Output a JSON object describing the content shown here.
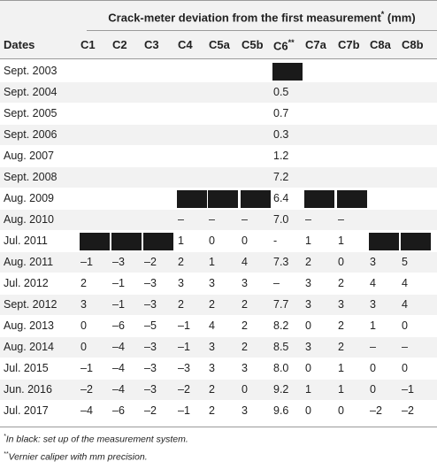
{
  "title": "Crack-meter deviation from the first measurement",
  "title_mark": "*",
  "title_unit": "(mm)",
  "columns": {
    "dates": "Dates",
    "list": [
      "C1",
      "C2",
      "C3",
      "C4",
      "C5a",
      "C5b",
      "C6",
      "C7a",
      "C7b",
      "C8a",
      "C8b"
    ],
    "c6_mark": "**"
  },
  "rows": [
    {
      "date": "Sept. 2003",
      "values": [
        "",
        "",
        "",
        "",
        "",
        "",
        "",
        "",
        "",
        "",
        ""
      ],
      "black": [
        false,
        false,
        false,
        false,
        false,
        false,
        true,
        false,
        false,
        false,
        false
      ]
    },
    {
      "date": "Sept. 2004",
      "values": [
        "",
        "",
        "",
        "",
        "",
        "",
        "0.5",
        "",
        "",
        "",
        ""
      ],
      "black": [
        false,
        false,
        false,
        false,
        false,
        false,
        false,
        false,
        false,
        false,
        false
      ]
    },
    {
      "date": "Sept. 2005",
      "values": [
        "",
        "",
        "",
        "",
        "",
        "",
        "0.7",
        "",
        "",
        "",
        ""
      ],
      "black": [
        false,
        false,
        false,
        false,
        false,
        false,
        false,
        false,
        false,
        false,
        false
      ]
    },
    {
      "date": "Sept. 2006",
      "values": [
        "",
        "",
        "",
        "",
        "",
        "",
        "0.3",
        "",
        "",
        "",
        ""
      ],
      "black": [
        false,
        false,
        false,
        false,
        false,
        false,
        false,
        false,
        false,
        false,
        false
      ]
    },
    {
      "date": "Aug. 2007",
      "values": [
        "",
        "",
        "",
        "",
        "",
        "",
        "1.2",
        "",
        "",
        "",
        ""
      ],
      "black": [
        false,
        false,
        false,
        false,
        false,
        false,
        false,
        false,
        false,
        false,
        false
      ]
    },
    {
      "date": "Sept. 2008",
      "values": [
        "",
        "",
        "",
        "",
        "",
        "",
        "7.2",
        "",
        "",
        "",
        ""
      ],
      "black": [
        false,
        false,
        false,
        false,
        false,
        false,
        false,
        false,
        false,
        false,
        false
      ]
    },
    {
      "date": "Aug. 2009",
      "values": [
        "",
        "",
        "",
        "",
        "",
        "",
        "6.4",
        "",
        "",
        "",
        ""
      ],
      "black": [
        false,
        false,
        false,
        true,
        true,
        true,
        false,
        true,
        true,
        false,
        false
      ]
    },
    {
      "date": "Aug. 2010",
      "values": [
        "",
        "",
        "",
        "–",
        "–",
        "–",
        "7.0",
        "–",
        "–",
        "",
        ""
      ],
      "black": [
        false,
        false,
        false,
        false,
        false,
        false,
        false,
        false,
        false,
        false,
        false
      ]
    },
    {
      "date": "Jul. 2011",
      "values": [
        "",
        "",
        "",
        "1",
        "0",
        "0",
        "-",
        "1",
        "1",
        "",
        ""
      ],
      "black": [
        true,
        true,
        true,
        false,
        false,
        false,
        false,
        false,
        false,
        true,
        true
      ]
    },
    {
      "date": "Aug. 2011",
      "values": [
        "–1",
        "–3",
        "–2",
        "2",
        "1",
        "4",
        "7.3",
        "2",
        "0",
        "3",
        "5"
      ],
      "black": [
        false,
        false,
        false,
        false,
        false,
        false,
        false,
        false,
        false,
        false,
        false
      ]
    },
    {
      "date": "Jul. 2012",
      "values": [
        "2",
        "–1",
        "–3",
        "3",
        "3",
        "3",
        "–",
        "3",
        "2",
        "4",
        "4"
      ],
      "black": [
        false,
        false,
        false,
        false,
        false,
        false,
        false,
        false,
        false,
        false,
        false
      ]
    },
    {
      "date": "Sept. 2012",
      "values": [
        "3",
        "–1",
        "–3",
        "2",
        "2",
        "2",
        "7.7",
        "3",
        "3",
        "3",
        "4"
      ],
      "black": [
        false,
        false,
        false,
        false,
        false,
        false,
        false,
        false,
        false,
        false,
        false
      ]
    },
    {
      "date": "Aug. 2013",
      "values": [
        "0",
        "–6",
        "–5",
        "–1",
        "4",
        "2",
        "8.2",
        "0",
        "2",
        "1",
        "0"
      ],
      "black": [
        false,
        false,
        false,
        false,
        false,
        false,
        false,
        false,
        false,
        false,
        false
      ]
    },
    {
      "date": "Aug. 2014",
      "values": [
        "0",
        "–4",
        "–3",
        "–1",
        "3",
        "2",
        "8.5",
        "3",
        "2",
        "–",
        "–"
      ],
      "black": [
        false,
        false,
        false,
        false,
        false,
        false,
        false,
        false,
        false,
        false,
        false
      ]
    },
    {
      "date": "Jul. 2015",
      "values": [
        "–1",
        "–4",
        "–3",
        "–3",
        "3",
        "3",
        "8.0",
        "0",
        "1",
        "0",
        "0"
      ],
      "black": [
        false,
        false,
        false,
        false,
        false,
        false,
        false,
        false,
        false,
        false,
        false
      ]
    },
    {
      "date": "Jun. 2016",
      "values": [
        "–2",
        "–4",
        "–3",
        "–2",
        "2",
        "0",
        "9.2",
        "1",
        "1",
        "0",
        "–1"
      ],
      "black": [
        false,
        false,
        false,
        false,
        false,
        false,
        false,
        false,
        false,
        false,
        false
      ]
    },
    {
      "date": "Jul. 2017",
      "values": [
        "–4",
        "–6",
        "–2",
        "–1",
        "2",
        "3",
        "9.6",
        "0",
        "0",
        "–2",
        "–2"
      ],
      "black": [
        false,
        false,
        false,
        false,
        false,
        false,
        false,
        false,
        false,
        false,
        false
      ]
    }
  ],
  "footnotes": [
    {
      "mark": "*",
      "text": "In black: set up of the measurement system."
    },
    {
      "mark": "**",
      "text": "Vernier caliper with mm precision."
    }
  ]
}
